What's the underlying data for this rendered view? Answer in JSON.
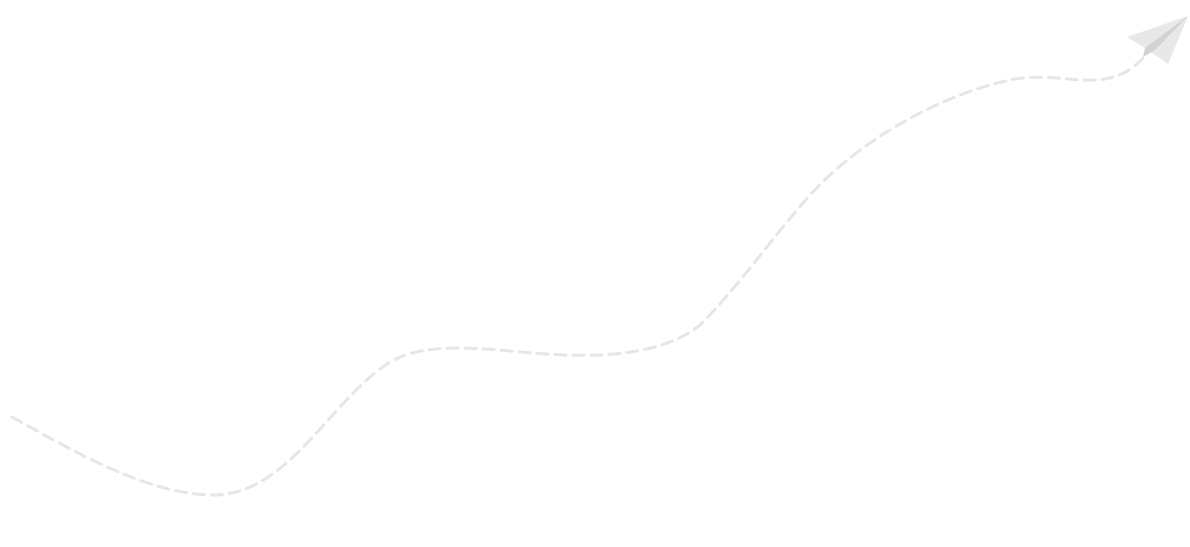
{
  "illustration": {
    "path_color": "#e6e6e6",
    "plane_color": "#e8e8e8",
    "plane_fold_color": "#d2d2d2",
    "icon": "paper-plane-icon",
    "trail": "dashed-flight-path"
  }
}
